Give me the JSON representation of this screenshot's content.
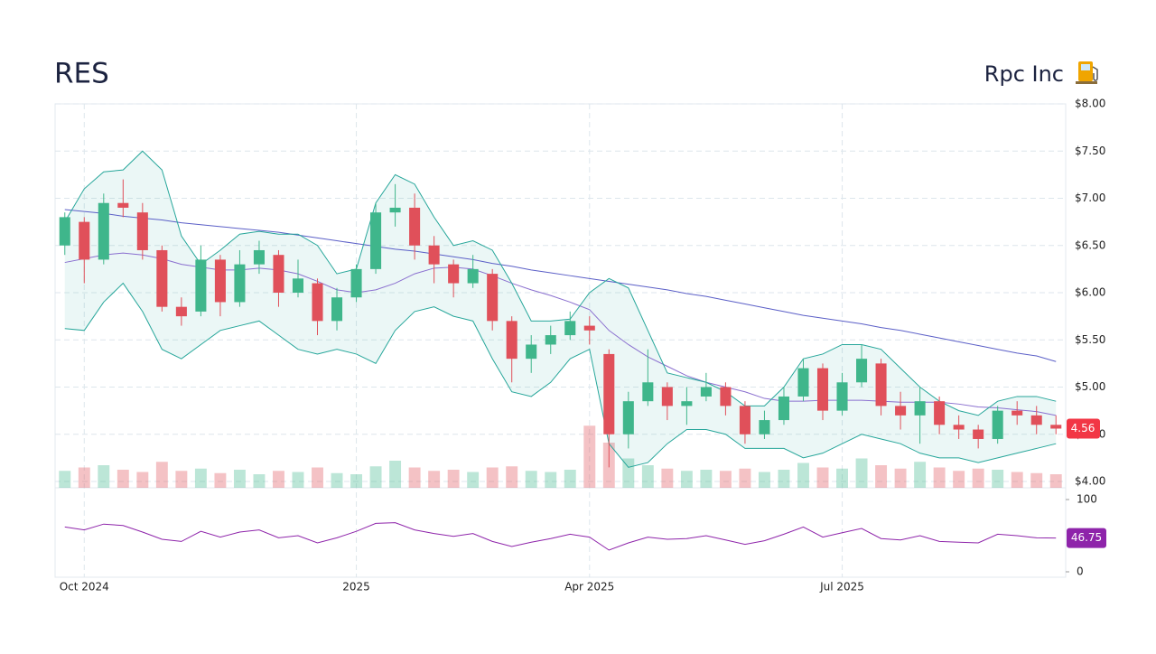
{
  "chart_data": {
    "type": "candlestick",
    "title": "RES",
    "subtitle": "Rpc Inc",
    "categories": [
      null,
      "Oct 2024",
      null,
      null,
      null,
      null,
      null,
      null,
      null,
      null,
      null,
      null,
      null,
      null,
      null,
      "2025",
      null,
      null,
      null,
      null,
      null,
      null,
      null,
      null,
      null,
      null,
      null,
      "Apr 2025",
      null,
      null,
      null,
      null,
      null,
      null,
      null,
      null,
      null,
      null,
      null,
      null,
      "Jul 2025",
      null,
      null,
      null,
      null,
      null,
      null,
      null,
      null,
      null,
      null,
      null
    ],
    "open": [
      6.5,
      6.75,
      6.35,
      6.95,
      6.85,
      6.45,
      5.85,
      5.8,
      6.35,
      5.9,
      6.3,
      6.4,
      6.0,
      6.1,
      5.7,
      5.95,
      6.25,
      6.85,
      6.9,
      6.5,
      6.3,
      6.1,
      6.2,
      5.7,
      5.3,
      5.45,
      5.55,
      5.65,
      5.35,
      4.5,
      4.85,
      5.0,
      4.8,
      4.9,
      5.0,
      4.8,
      4.5,
      4.65,
      4.9,
      5.2,
      4.75,
      5.05,
      5.25,
      4.8,
      4.7,
      4.85,
      4.6,
      4.55,
      4.45,
      4.75,
      4.7,
      4.6
    ],
    "high": [
      6.85,
      6.8,
      7.05,
      7.2,
      6.95,
      6.5,
      5.95,
      6.5,
      6.4,
      6.45,
      6.55,
      6.45,
      6.35,
      6.15,
      6.05,
      6.3,
      6.95,
      7.15,
      7.05,
      6.6,
      6.35,
      6.4,
      6.25,
      5.75,
      5.55,
      5.65,
      5.8,
      5.75,
      5.4,
      4.95,
      5.4,
      5.05,
      5.0,
      5.15,
      5.05,
      4.85,
      4.75,
      5.0,
      5.3,
      5.25,
      5.15,
      5.45,
      5.3,
      4.95,
      5.0,
      4.9,
      4.7,
      4.6,
      4.8,
      4.85,
      4.8,
      4.7
    ],
    "low": [
      6.4,
      6.1,
      6.3,
      6.8,
      6.35,
      5.8,
      5.65,
      5.75,
      5.75,
      5.85,
      6.2,
      5.85,
      5.95,
      5.55,
      5.6,
      5.9,
      6.2,
      6.7,
      6.35,
      6.1,
      5.95,
      6.05,
      5.6,
      5.05,
      5.15,
      5.35,
      5.5,
      5.45,
      4.15,
      4.35,
      4.8,
      4.65,
      4.6,
      4.85,
      4.7,
      4.4,
      4.45,
      4.6,
      4.85,
      4.65,
      4.7,
      5.0,
      4.7,
      4.55,
      4.4,
      4.5,
      4.45,
      4.35,
      4.4,
      4.6,
      4.5,
      4.5
    ],
    "close": [
      6.8,
      6.35,
      6.95,
      6.9,
      6.45,
      5.85,
      5.75,
      6.35,
      5.9,
      6.3,
      6.45,
      6.0,
      6.15,
      5.7,
      5.95,
      6.25,
      6.85,
      6.9,
      6.5,
      6.3,
      6.1,
      6.25,
      5.7,
      5.3,
      5.45,
      5.55,
      5.7,
      5.6,
      4.5,
      4.85,
      5.05,
      4.8,
      4.85,
      5.0,
      4.8,
      4.5,
      4.65,
      4.9,
      5.2,
      4.75,
      5.05,
      5.3,
      4.8,
      4.7,
      4.85,
      4.6,
      4.55,
      4.45,
      4.75,
      4.7,
      4.6,
      4.56
    ],
    "volume": [
      1.5,
      1.8,
      2.0,
      1.6,
      1.4,
      2.3,
      1.5,
      1.7,
      1.3,
      1.6,
      1.2,
      1.5,
      1.4,
      1.8,
      1.3,
      1.2,
      1.9,
      2.4,
      1.8,
      1.5,
      1.6,
      1.4,
      1.8,
      1.9,
      1.5,
      1.4,
      1.6,
      5.5,
      4.0,
      2.6,
      2.0,
      1.7,
      1.5,
      1.6,
      1.5,
      1.7,
      1.4,
      1.6,
      2.2,
      1.8,
      1.7,
      2.6,
      2.0,
      1.7,
      2.3,
      1.8,
      1.5,
      1.7,
      1.6,
      1.4,
      1.3,
      1.2
    ],
    "volume_ylim": [
      0,
      6
    ],
    "up_color": "#3fb68b",
    "down_color": "#e0505a",
    "lines": [
      {
        "color": "#5b5fc7",
        "values": [
          6.88,
          6.86,
          6.84,
          6.81,
          6.79,
          6.77,
          6.74,
          6.72,
          6.7,
          6.68,
          6.66,
          6.64,
          6.61,
          6.58,
          6.55,
          6.52,
          6.49,
          6.46,
          6.44,
          6.41,
          6.38,
          6.35,
          6.31,
          6.28,
          6.24,
          6.21,
          6.18,
          6.15,
          6.12,
          6.09,
          6.06,
          6.03,
          5.99,
          5.96,
          5.92,
          5.88,
          5.84,
          5.8,
          5.76,
          5.73,
          5.7,
          5.67,
          5.63,
          5.6,
          5.56,
          5.52,
          5.48,
          5.44,
          5.4,
          5.36,
          5.33,
          5.27
        ]
      },
      {
        "color": "#8a6fcf",
        "values": [
          6.32,
          6.36,
          6.4,
          6.42,
          6.4,
          6.36,
          6.3,
          6.27,
          6.24,
          6.24,
          6.26,
          6.24,
          6.2,
          6.12,
          6.03,
          6.0,
          6.03,
          6.1,
          6.2,
          6.26,
          6.27,
          6.25,
          6.18,
          6.1,
          6.03,
          5.97,
          5.9,
          5.82,
          5.6,
          5.45,
          5.32,
          5.22,
          5.12,
          5.05,
          5.0,
          4.95,
          4.88,
          4.85,
          4.85,
          4.86,
          4.86,
          4.86,
          4.85,
          4.84,
          4.84,
          4.84,
          4.82,
          4.79,
          4.78,
          4.76,
          4.74,
          4.7
        ]
      },
      {
        "color": "#26a69a",
        "values": [
          6.75,
          7.1,
          7.28,
          7.3,
          7.5,
          7.3,
          6.6,
          6.3,
          6.45,
          6.62,
          6.65,
          6.62,
          6.62,
          6.5,
          6.2,
          6.25,
          6.95,
          7.25,
          7.15,
          6.8,
          6.5,
          6.55,
          6.45,
          6.1,
          5.7,
          5.7,
          5.72,
          6.0,
          6.15,
          6.05,
          5.6,
          5.15,
          5.1,
          5.05,
          4.95,
          4.8,
          4.8,
          5.0,
          5.3,
          5.35,
          5.45,
          5.45,
          5.4,
          5.2,
          5.0,
          4.85,
          4.75,
          4.7,
          4.85,
          4.9,
          4.9,
          4.85
        ]
      },
      {
        "color": "#26a69a",
        "values": [
          5.62,
          5.6,
          5.9,
          6.1,
          5.8,
          5.4,
          5.3,
          5.45,
          5.6,
          5.65,
          5.7,
          5.55,
          5.4,
          5.35,
          5.4,
          5.35,
          5.25,
          5.6,
          5.8,
          5.85,
          5.75,
          5.7,
          5.3,
          4.95,
          4.9,
          5.05,
          5.3,
          5.4,
          4.4,
          4.15,
          4.2,
          4.4,
          4.55,
          4.55,
          4.5,
          4.35,
          4.35,
          4.35,
          4.25,
          4.3,
          4.4,
          4.5,
          4.45,
          4.4,
          4.3,
          4.25,
          4.25,
          4.2,
          4.25,
          4.3,
          4.35,
          4.4
        ]
      }
    ],
    "band_fill": "rgba(38,166,154,0.09)",
    "ylim": [
      4.0,
      8.0
    ],
    "yticks": [
      {
        "value": 4.0,
        "label": "$4.00"
      },
      {
        "value": 4.5,
        "label": "$4.50"
      },
      {
        "value": 5.0,
        "label": "$5.00"
      },
      {
        "value": 5.5,
        "label": "$5.50"
      },
      {
        "value": 6.0,
        "label": "$6.00"
      },
      {
        "value": 6.5,
        "label": "$6.50"
      },
      {
        "value": 7.0,
        "label": "$7.00"
      },
      {
        "value": 7.5,
        "label": "$7.50"
      },
      {
        "value": 8.0,
        "label": "$8.00"
      }
    ],
    "grid": true,
    "rsi": {
      "color": "#8e24aa",
      "ylim": [
        0,
        100
      ],
      "yticks": [
        0,
        100
      ],
      "values": [
        62,
        58,
        66,
        64,
        55,
        45,
        42,
        56,
        48,
        55,
        58,
        47,
        50,
        40,
        47,
        56,
        67,
        68,
        58,
        53,
        49,
        53,
        42,
        35,
        41,
        46,
        52,
        48,
        30,
        40,
        48,
        45,
        46,
        50,
        44,
        38,
        43,
        52,
        62,
        48,
        54,
        60,
        46,
        44,
        50,
        42,
        41,
        40,
        52,
        50,
        47,
        46.75
      ]
    }
  }
}
